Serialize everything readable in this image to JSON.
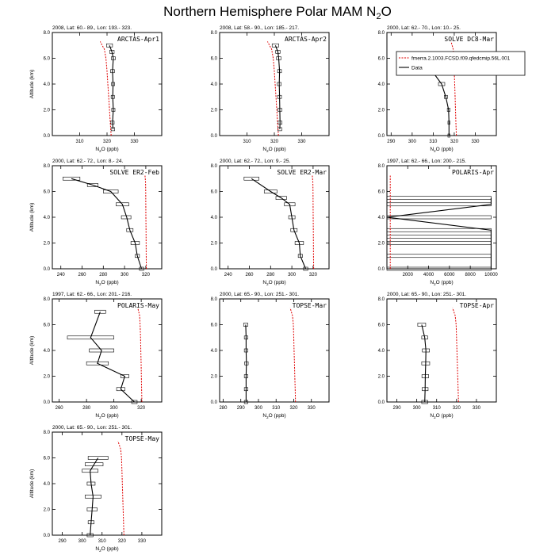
{
  "figure": {
    "title_main": "Northern Hemisphere Polar MAM N",
    "title_sub": "2",
    "title_end": "O"
  },
  "chart_data": [
    {
      "type": "line",
      "header": "2008, Lat: 60.- 89., Lon: 193.- 323.",
      "label": "ARCTAS-Apr1",
      "xlabel_main": "N",
      "xlabel_sub": "2",
      "xlabel_end": "O (ppb)",
      "ylabel": "Altitude (km)",
      "xlim": [
        300,
        340
      ],
      "xticks": [
        310,
        320,
        330
      ],
      "ylim": [
        0,
        8
      ],
      "yticks": [
        "0.0",
        "2.0",
        "4.0",
        "6.0",
        "8.0"
      ],
      "model": {
        "x": [
          321.5,
          321.2,
          320.9,
          320.6,
          320.3,
          320.0,
          319.6,
          319.0,
          317.5
        ],
        "y": [
          0,
          1,
          2,
          3,
          4,
          5,
          6,
          6.7,
          7.3
        ]
      },
      "obs": {
        "x": [
          322.2,
          322.0,
          322.3,
          322.1,
          322.2,
          322.0,
          322.3,
          321.8,
          320.9
        ],
        "y": [
          0.5,
          1,
          2,
          3,
          4,
          5,
          6,
          6.5,
          7
        ]
      },
      "err": {
        "lo": [
          321.5,
          321.4,
          321.7,
          321.5,
          321.6,
          321.3,
          321.6,
          321.0,
          319.8
        ],
        "hi": [
          322.8,
          322.6,
          322.9,
          322.7,
          322.8,
          322.7,
          323.0,
          322.6,
          322.0
        ]
      }
    },
    {
      "type": "line",
      "header": "2008, Lat: 58.- 90., Lon: 185.- 217.",
      "label": "ARCTAS-Apr2",
      "xlabel_main": "N",
      "xlabel_sub": "2",
      "xlabel_end": "O (ppb)",
      "ylabel": "",
      "xlim": [
        300,
        340
      ],
      "xticks": [
        310,
        320,
        330
      ],
      "ylim": [
        0,
        8
      ],
      "yticks": [
        "0.0",
        "2.0",
        "4.0",
        "6.0",
        "8.0"
      ],
      "model": {
        "x": [
          321.5,
          321.2,
          320.9,
          320.6,
          320.3,
          320.0,
          319.6,
          319.0,
          317.5
        ],
        "y": [
          0,
          1,
          2,
          3,
          4,
          5,
          6,
          6.7,
          7.3
        ]
      },
      "obs": {
        "x": [
          322.0,
          322.1,
          322.0,
          321.9,
          321.8,
          321.9,
          321.6,
          321.3,
          320.4
        ],
        "y": [
          0.5,
          1,
          2,
          3,
          4,
          5,
          6,
          6.5,
          7
        ]
      },
      "err": {
        "lo": [
          321.3,
          321.4,
          321.3,
          321.2,
          321.1,
          321.2,
          320.8,
          320.5,
          319.2
        ],
        "hi": [
          322.7,
          322.8,
          322.7,
          322.6,
          322.5,
          322.6,
          322.4,
          322.1,
          321.6
        ]
      }
    },
    {
      "type": "line",
      "header": "2000, Lat: 62.- 70., Lon: 10.- 25.",
      "label": "SOLVE DC8-Mar",
      "xlabel_main": "N",
      "xlabel_sub": "2",
      "xlabel_end": "O (ppb)",
      "ylabel": "",
      "xlim": [
        288,
        340
      ],
      "xticks": [
        290,
        300,
        310,
        320,
        330
      ],
      "ylim": [
        0,
        8
      ],
      "yticks": [
        "0.0",
        "2.0",
        "4.0",
        "6.0",
        "8.0"
      ],
      "model": {
        "x": [
          321.0,
          320.8,
          320.6,
          320.4,
          320.2,
          320.0,
          319.8,
          319.5,
          318.5
        ],
        "y": [
          0,
          1,
          2,
          3,
          4,
          5,
          6,
          6.7,
          7.3
        ]
      },
      "obs": {
        "x": [
          317.5,
          317.5,
          317.3,
          316.0,
          314.0,
          309.5,
          306.0
        ],
        "y": [
          0,
          1,
          2,
          3,
          4,
          5,
          5.5
        ]
      },
      "err": {
        "lo": [
          317.0,
          317.0,
          316.7,
          315.3,
          312.5,
          307.5,
          303.0
        ],
        "hi": [
          318.0,
          318.0,
          318.0,
          316.8,
          315.5,
          311.5,
          309.0
        ]
      },
      "legend": {
        "model_label": "fmerra.2.1003.FCSD.f09.qfedcmip.56L.001",
        "obs_label": "Data"
      }
    },
    {
      "type": "line",
      "header": "2000, Lat: 62.- 72., Lon: 8.- 24.",
      "label": "SOLVE ER2-Feb",
      "xlabel_main": "N",
      "xlabel_sub": "2",
      "xlabel_end": "O (ppb)",
      "ylabel": "Altitude (km)",
      "xlim": [
        232,
        335
      ],
      "xticks": [
        240,
        260,
        280,
        300,
        320
      ],
      "ylim": [
        0,
        8
      ],
      "yticks": [
        "0.0",
        "2.0",
        "4.0",
        "6.0",
        "8.0"
      ],
      "model": {
        "x": [
          320.5,
          320.4,
          320.3,
          320.2,
          320.1,
          320.0,
          319.9,
          319.8,
          319.2
        ],
        "y": [
          0,
          1,
          2,
          3,
          4,
          5,
          6,
          6.7,
          7.3
        ]
      },
      "obs": {
        "x": [
          316,
          312,
          310,
          305,
          302,
          298,
          287,
          270,
          250
        ],
        "y": [
          0,
          1,
          2,
          3,
          4,
          5,
          6,
          6.5,
          7
        ]
      },
      "err": {
        "lo": [
          314,
          310,
          306,
          302,
          297,
          292,
          280,
          265,
          242
        ],
        "hi": [
          318,
          314,
          314,
          308,
          306,
          304,
          294,
          275,
          258
        ]
      }
    },
    {
      "type": "line",
      "header": "2000, Lat: 62.- 72., Lon: 9.- 25.",
      "label": "SOLVE ER2-Mar",
      "xlabel_main": "N",
      "xlabel_sub": "2",
      "xlabel_end": "O (ppb)",
      "ylabel": "",
      "xlim": [
        232,
        335
      ],
      "xticks": [
        240,
        260,
        280,
        300,
        320
      ],
      "ylim": [
        0,
        8
      ],
      "yticks": [
        "0.0",
        "2.0",
        "4.0",
        "6.0",
        "8.0"
      ],
      "model": {
        "x": [
          320.5,
          320.4,
          320.3,
          320.2,
          320.1,
          320.0,
          319.9,
          319.8,
          319.2
        ],
        "y": [
          0,
          1,
          2,
          3,
          4,
          5,
          6,
          6.7,
          7.3
        ]
      },
      "obs": {
        "x": [
          313,
          308,
          307,
          302,
          300,
          298,
          290,
          280,
          262
        ],
        "y": [
          0,
          1,
          2,
          3,
          4,
          5,
          5.5,
          6,
          7
        ]
      },
      "err": {
        "lo": [
          311,
          306,
          303,
          299,
          297,
          293,
          285,
          274,
          255
        ],
        "hi": [
          315,
          310,
          311,
          305,
          303,
          303,
          295,
          286,
          269
        ]
      }
    },
    {
      "type": "line",
      "header": "1997, Lat: 62.- 66., Lon: 200.- 215.",
      "label": "POLARIS-Apr",
      "xlabel_main": "N",
      "xlabel_sub": "2",
      "xlabel_end": "O (ppb)",
      "ylabel": "",
      "xlim": [
        0,
        10500
      ],
      "xticks": [
        2000,
        4000,
        6000,
        8000,
        10000
      ],
      "ylim": [
        0,
        8
      ],
      "yticks": [
        "0.0",
        "2.0",
        "4.0",
        "6.0",
        "8.0"
      ],
      "model": {
        "x": [
          320,
          320,
          320,
          320,
          320,
          320,
          320,
          320
        ],
        "y": [
          0,
          1,
          2,
          3,
          4,
          5,
          6,
          7.3
        ]
      },
      "obs": {
        "x": [
          10000,
          10000,
          10000,
          10000,
          10000,
          0,
          10000,
          10000
        ],
        "y": [
          0,
          1,
          2,
          2.5,
          3,
          4,
          5,
          5.5
        ]
      },
      "err": {
        "lo": [
          0,
          0,
          0,
          0,
          0,
          0,
          0,
          0
        ],
        "hi": [
          10000,
          10000,
          10000,
          10000,
          10000,
          10000,
          10000,
          10000
        ]
      }
    },
    {
      "type": "line",
      "header": "1997, Lat: 62.- 66., Lon: 201.- 216.",
      "label": "POLARIS-May",
      "xlabel_main": "N",
      "xlabel_sub": "2",
      "xlabel_end": "O (ppb)",
      "ylabel": "Altitude (km)",
      "xlim": [
        255,
        335
      ],
      "xticks": [
        260,
        280,
        300,
        320
      ],
      "ylim": [
        0,
        8
      ],
      "yticks": [
        "0.0",
        "2.0",
        "4.0",
        "6.0",
        "8.0"
      ],
      "model": {
        "x": [
          320.5,
          320.3,
          320.1,
          319.9,
          319.7,
          319.5,
          319.2,
          318.8,
          317.5
        ],
        "y": [
          0,
          1,
          2,
          3,
          4,
          5,
          6,
          6.7,
          7.3
        ]
      },
      "obs": {
        "x": [
          315,
          305,
          308,
          288,
          291,
          283,
          290
        ],
        "y": [
          0,
          1,
          2,
          3,
          4,
          5,
          7
        ]
      },
      "err": {
        "lo": [
          313,
          302,
          305,
          280,
          282,
          266,
          286
        ],
        "hi": [
          317,
          308,
          311,
          296,
          300,
          300,
          294
        ]
      }
    },
    {
      "type": "line",
      "header": "2000, Lat: 65.- 90., Lon: 251.- 301.",
      "label": "TOPSE-Mar",
      "xlabel_main": "N",
      "xlabel_sub": "2",
      "xlabel_end": "O (ppb)",
      "ylabel": "",
      "xlim": [
        278,
        340
      ],
      "xticks": [
        280,
        290,
        300,
        310,
        320,
        330
      ],
      "ylim": [
        0,
        8
      ],
      "yticks": [
        "0.0",
        "2.0",
        "4.0",
        "6.0",
        "8.0"
      ],
      "model": {
        "x": [
          321.0,
          320.8,
          320.6,
          320.4,
          320.2,
          320.0,
          319.8,
          319.3,
          318.0
        ],
        "y": [
          0,
          1,
          2,
          3,
          4,
          5,
          6,
          6.7,
          7.3
        ]
      },
      "obs": {
        "x": [
          293.0,
          293.0,
          293.0,
          293.2,
          293.0,
          293.0,
          292.8
        ],
        "y": [
          0,
          1,
          2,
          3,
          4,
          5,
          6
        ]
      },
      "err": {
        "lo": [
          292.0,
          292.0,
          292.0,
          292.2,
          292.0,
          292.0,
          291.6
        ],
        "hi": [
          294.0,
          294.0,
          294.0,
          294.2,
          294.0,
          294.0,
          294.0
        ]
      }
    },
    {
      "type": "line",
      "header": "2000, Lat: 65.- 90., Lon: 251.- 301.",
      "label": "TOPSE-Apr",
      "xlabel_main": "N",
      "xlabel_sub": "2",
      "xlabel_end": "O (ppb)",
      "ylabel": "",
      "xlim": [
        285,
        340
      ],
      "xticks": [
        290,
        300,
        310,
        320,
        330
      ],
      "ylim": [
        0,
        8
      ],
      "yticks": [
        "0.0",
        "2.0",
        "4.0",
        "6.0",
        "8.0"
      ],
      "model": {
        "x": [
          321.0,
          320.8,
          320.6,
          320.4,
          320.2,
          320.0,
          319.8,
          319.3,
          318.0
        ],
        "y": [
          0,
          1,
          2,
          3,
          4,
          5,
          6,
          6.7,
          7.3
        ]
      },
      "obs": {
        "x": [
          304.0,
          304.2,
          304.3,
          304.5,
          304.6,
          304.0,
          302.5
        ],
        "y": [
          0,
          1,
          2,
          3,
          4,
          5,
          6
        ]
      },
      "err": {
        "lo": [
          302.5,
          302.7,
          302.6,
          302.5,
          302.8,
          302.5,
          300.5
        ],
        "hi": [
          305.5,
          305.7,
          306.0,
          306.5,
          306.4,
          305.5,
          304.5
        ]
      }
    },
    {
      "type": "line",
      "header": "2000, Lat: 65.- 90., Lon: 251.- 301.",
      "label": "TOPSE-May",
      "xlabel_main": "N",
      "xlabel_sub": "2",
      "xlabel_end": "O (ppb)",
      "ylabel": "Altitude (km)",
      "xlim": [
        285,
        340
      ],
      "xticks": [
        290,
        300,
        310,
        320,
        330
      ],
      "ylim": [
        0,
        8
      ],
      "yticks": [
        "0.0",
        "2.0",
        "4.0",
        "6.0",
        "8.0"
      ],
      "model": {
        "x": [
          321.0,
          320.8,
          320.6,
          320.4,
          320.2,
          320.0,
          319.8,
          319.3,
          318.0
        ],
        "y": [
          0,
          1,
          2,
          3,
          4,
          5,
          6,
          6.7,
          7.3
        ]
      },
      "obs": {
        "x": [
          304.0,
          304.5,
          305.0,
          305.5,
          304.5,
          304.0,
          306.0,
          308.0
        ],
        "y": [
          0,
          1,
          2,
          3,
          4,
          5,
          5.5,
          6
        ]
      },
      "err": {
        "lo": [
          302.5,
          303.0,
          302.5,
          301.5,
          302.5,
          300.0,
          301.5,
          303.0
        ],
        "hi": [
          305.5,
          306.0,
          307.5,
          309.5,
          306.5,
          308.0,
          310.5,
          313.0
        ]
      }
    }
  ]
}
